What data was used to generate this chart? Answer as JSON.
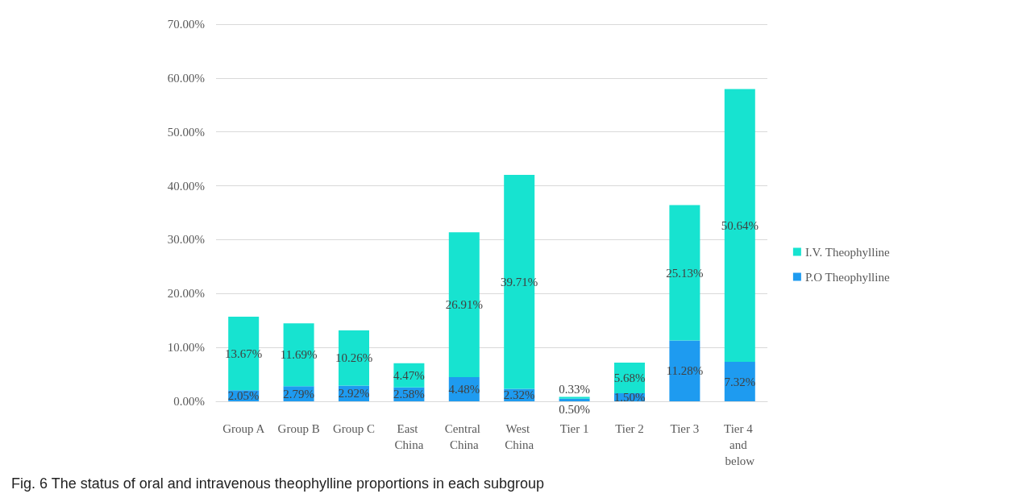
{
  "chart_data": {
    "type": "bar",
    "stacked": true,
    "categories": [
      "Group A",
      "Group B",
      "Group C",
      "East China",
      "Central China",
      "West China",
      "Tier 1",
      "Tier 2",
      "Tier 3",
      "Tier 4 and below"
    ],
    "series": [
      {
        "name": "P.O Theophylline",
        "color": "#1e9bf0",
        "values": [
          2.05,
          2.79,
          2.92,
          2.58,
          4.48,
          2.32,
          0.5,
          1.5,
          11.28,
          7.32
        ],
        "value_labels": [
          "2.05%",
          "2.79%",
          "2.92%",
          "2.58%",
          "4.48%",
          "2.32%",
          "0.50%",
          "1.50%",
          "11.28%",
          "7.32%"
        ]
      },
      {
        "name": "I.V. Theophylline",
        "color": "#17e3d0",
        "values": [
          13.67,
          11.69,
          10.26,
          4.47,
          26.91,
          39.71,
          0.33,
          5.68,
          25.13,
          50.64
        ],
        "value_labels": [
          "13.67%",
          "11.69%",
          "10.26%",
          "4.47%",
          "26.91%",
          "39.71%",
          "0.33%",
          "5.68%",
          "25.13%",
          "50.64%"
        ]
      }
    ],
    "ylim": [
      0,
      70
    ],
    "yticks": [
      {
        "value": 0,
        "label": "0.00%"
      },
      {
        "value": 10,
        "label": "10.00%"
      },
      {
        "value": 20,
        "label": "20.00%"
      },
      {
        "value": 30,
        "label": "30.00%"
      },
      {
        "value": 40,
        "label": "40.00%"
      },
      {
        "value": 50,
        "label": "50.00%"
      },
      {
        "value": 60,
        "label": "60.00%"
      },
      {
        "value": 70,
        "label": "70.00%"
      }
    ],
    "grid": "y",
    "legend": "right",
    "annotations": [
      "Fig. 6  The status of oral and intravenous theophylline proportions in each subgroup"
    ]
  }
}
